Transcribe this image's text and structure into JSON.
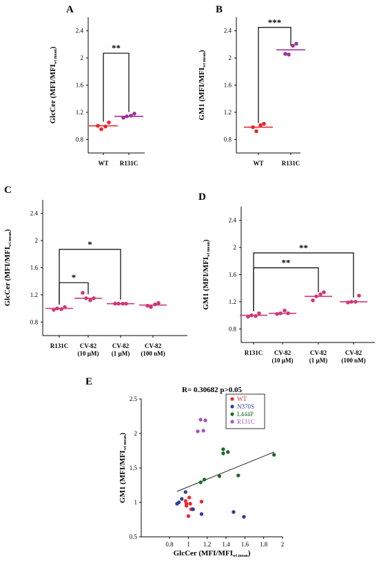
{
  "figure": {
    "panels": [
      "A",
      "B",
      "C",
      "D",
      "E"
    ]
  },
  "chart_data": [
    {
      "panel": "A",
      "type": "scatter",
      "ylabel": "GlcCer (MFI/MFI",
      "ylabel_sub": "wt mean",
      "ylabel_close": ")",
      "categories": [
        "WT",
        "R131C"
      ],
      "ylim": [
        0.6,
        2.6
      ],
      "yticks": [
        0.8,
        1.2,
        1.6,
        2,
        2.4
      ],
      "ytick_labels": [
        "0.8",
        "1.2",
        "1.6",
        "2",
        "2.4"
      ],
      "grid": false,
      "colors": [
        "#e8282e",
        "#a0309a"
      ],
      "means": [
        1.0,
        1.14
      ],
      "points": [
        [
          1.0,
          0.95,
          0.99,
          1.05
        ],
        [
          1.12,
          1.14,
          1.15,
          1.18
        ]
      ],
      "brackets": [
        {
          "from": 0,
          "to": 1,
          "y": 2.07,
          "label": "**"
        }
      ]
    },
    {
      "panel": "B",
      "type": "scatter",
      "ylabel": "GM1 (MFI/MFI",
      "ylabel_sub": "wt mean",
      "ylabel_close": ")",
      "categories": [
        "WT",
        "R131C"
      ],
      "ylim": [
        0.6,
        2.6
      ],
      "yticks": [
        0.8,
        1.2,
        1.6,
        2,
        2.4
      ],
      "ytick_labels": [
        "0.8",
        "1.2",
        "1.6",
        "2",
        "2.4"
      ],
      "grid": false,
      "colors": [
        "#e8282e",
        "#a0309a"
      ],
      "means": [
        0.98,
        2.12
      ],
      "points": [
        [
          0.98,
          0.92,
          1.01,
          1.03
        ],
        [
          2.06,
          2.05,
          2.18,
          2.21
        ]
      ],
      "brackets": [
        {
          "from": 0,
          "to": 1,
          "y": 2.45,
          "label": "***"
        }
      ]
    },
    {
      "panel": "C",
      "type": "scatter",
      "ylabel": "GlcCer (MFI/MFI",
      "ylabel_sub": "wt mean",
      "ylabel_close": ")",
      "categories": [
        {
          "line1": "R131C",
          "line2": ""
        },
        {
          "line1": "CV-82",
          "line2": "(10 µM)"
        },
        {
          "line1": "CV-82",
          "line2": "(1 µM)"
        },
        {
          "line1": "CV-82",
          "line2": "(100 nM)"
        }
      ],
      "ylim": [
        0.6,
        2.6
      ],
      "yticks": [
        0.8,
        1.2,
        1.6,
        2,
        2.4
      ],
      "ytick_labels": [
        "0.8",
        "1.2",
        "1.6",
        "2",
        "2.4"
      ],
      "grid": false,
      "colors": [
        "#d03878",
        "#d03878",
        "#d03878",
        "#d03878"
      ],
      "means": [
        1.0,
        1.15,
        1.07,
        1.05
      ],
      "points": [
        [
          0.98,
          1.0,
          0.99,
          1.02
        ],
        [
          1.23,
          1.15,
          1.12,
          1.15
        ],
        [
          1.07,
          1.07,
          1.07,
          1.07
        ],
        [
          1.04,
          1.02,
          1.06,
          1.08
        ]
      ],
      "brackets": [
        {
          "from": 0,
          "to": 1,
          "y": 1.38,
          "label": "*"
        },
        {
          "from": 0,
          "to": 2,
          "y": 1.87,
          "label": "*"
        }
      ]
    },
    {
      "panel": "D",
      "type": "scatter",
      "ylabel": "GM1 (MFI/MFI",
      "ylabel_sub": "wt mean",
      "ylabel_close": ")",
      "categories": [
        {
          "line1": "R131C",
          "line2": ""
        },
        {
          "line1": "CV-82",
          "line2": "(10 µM)"
        },
        {
          "line1": "CV-82",
          "line2": "(1 µM)"
        },
        {
          "line1": "CV-82",
          "line2": "(100 nM)"
        }
      ],
      "ylim": [
        0.6,
        2.6
      ],
      "yticks": [
        0.8,
        1.2,
        1.6,
        2,
        2.4
      ],
      "ytick_labels": [
        "0.8",
        "1.2",
        "1.6",
        "2",
        "2.4"
      ],
      "grid": false,
      "colors": [
        "#d03878",
        "#d03878",
        "#d03878",
        "#d03878"
      ],
      "means": [
        1.0,
        1.03,
        1.28,
        1.2
      ],
      "points": [
        [
          0.98,
          1.0,
          0.99,
          1.03
        ],
        [
          1.02,
          1.03,
          1.07,
          1.03
        ],
        [
          1.22,
          1.28,
          1.31,
          1.34
        ],
        [
          1.19,
          1.2,
          1.2,
          1.29
        ]
      ],
      "brackets": [
        {
          "from": 0,
          "to": 2,
          "y": 1.7,
          "label": "**"
        },
        {
          "from": 0,
          "to": 3,
          "y": 1.92,
          "label": "**"
        }
      ]
    },
    {
      "panel": "E",
      "type": "scatter",
      "title": "R= 0.30682 p>0.05",
      "xlabel": "GlcCer (MFI/MFI",
      "xlabel_sub": "wt mean",
      "xlabel_close": ")",
      "ylabel": "GM1 (MFI/MFI",
      "ylabel_sub": "wt mean",
      "ylabel_close": ")",
      "xlim": [
        0.5,
        2
      ],
      "ylim": [
        0.5,
        2.5
      ],
      "xticks": [
        0.8,
        1,
        1.2,
        1.4,
        1.6,
        1.8,
        2
      ],
      "xtick_labels": [
        "0.8",
        "1",
        "1.2",
        "1.4",
        "1.6",
        "1.8",
        "2"
      ],
      "yticks": [
        0.5,
        1,
        1.5,
        2,
        2.5
      ],
      "ytick_labels": [
        "0.5",
        "1",
        "1.5",
        "2",
        "2.5"
      ],
      "grid": false,
      "legend_placement": "top-right",
      "trendline": {
        "x": [
          0.88,
          1.91
        ],
        "y": [
          1.16,
          1.73
        ]
      },
      "series": [
        {
          "name": "WT",
          "color": "#e8282e",
          "points": [
            [
              0.97,
              1.02
            ],
            [
              0.98,
              0.95
            ],
            [
              1.0,
              0.8
            ],
            [
              1.01,
              1.07
            ],
            [
              1.02,
              0.98
            ],
            [
              1.03,
              0.9
            ],
            [
              1.14,
              1.01
            ],
            [
              0.98,
              0.98
            ]
          ]
        },
        {
          "name": "N370S",
          "color": "#2f3d9c",
          "points": [
            [
              0.88,
              0.98
            ],
            [
              0.9,
              1.0
            ],
            [
              0.93,
              1.05
            ],
            [
              0.97,
              1.15
            ],
            [
              1.05,
              0.9
            ],
            [
              1.14,
              0.83
            ],
            [
              1.48,
              0.86
            ],
            [
              1.59,
              0.79
            ]
          ]
        },
        {
          "name": "L444P",
          "color": "#1e6b2a",
          "points": [
            [
              1.13,
              1.29
            ],
            [
              1.17,
              1.33
            ],
            [
              1.33,
              1.38
            ],
            [
              1.37,
              1.71
            ],
            [
              1.37,
              1.77
            ],
            [
              1.42,
              1.73
            ],
            [
              1.53,
              1.39
            ],
            [
              1.91,
              1.69
            ]
          ]
        },
        {
          "name": "R131C",
          "color": "#a855b8",
          "points": [
            [
              1.1,
              2.03
            ],
            [
              1.13,
              2.2
            ],
            [
              1.16,
              2.04
            ],
            [
              1.18,
              2.19
            ]
          ]
        }
      ]
    }
  ]
}
